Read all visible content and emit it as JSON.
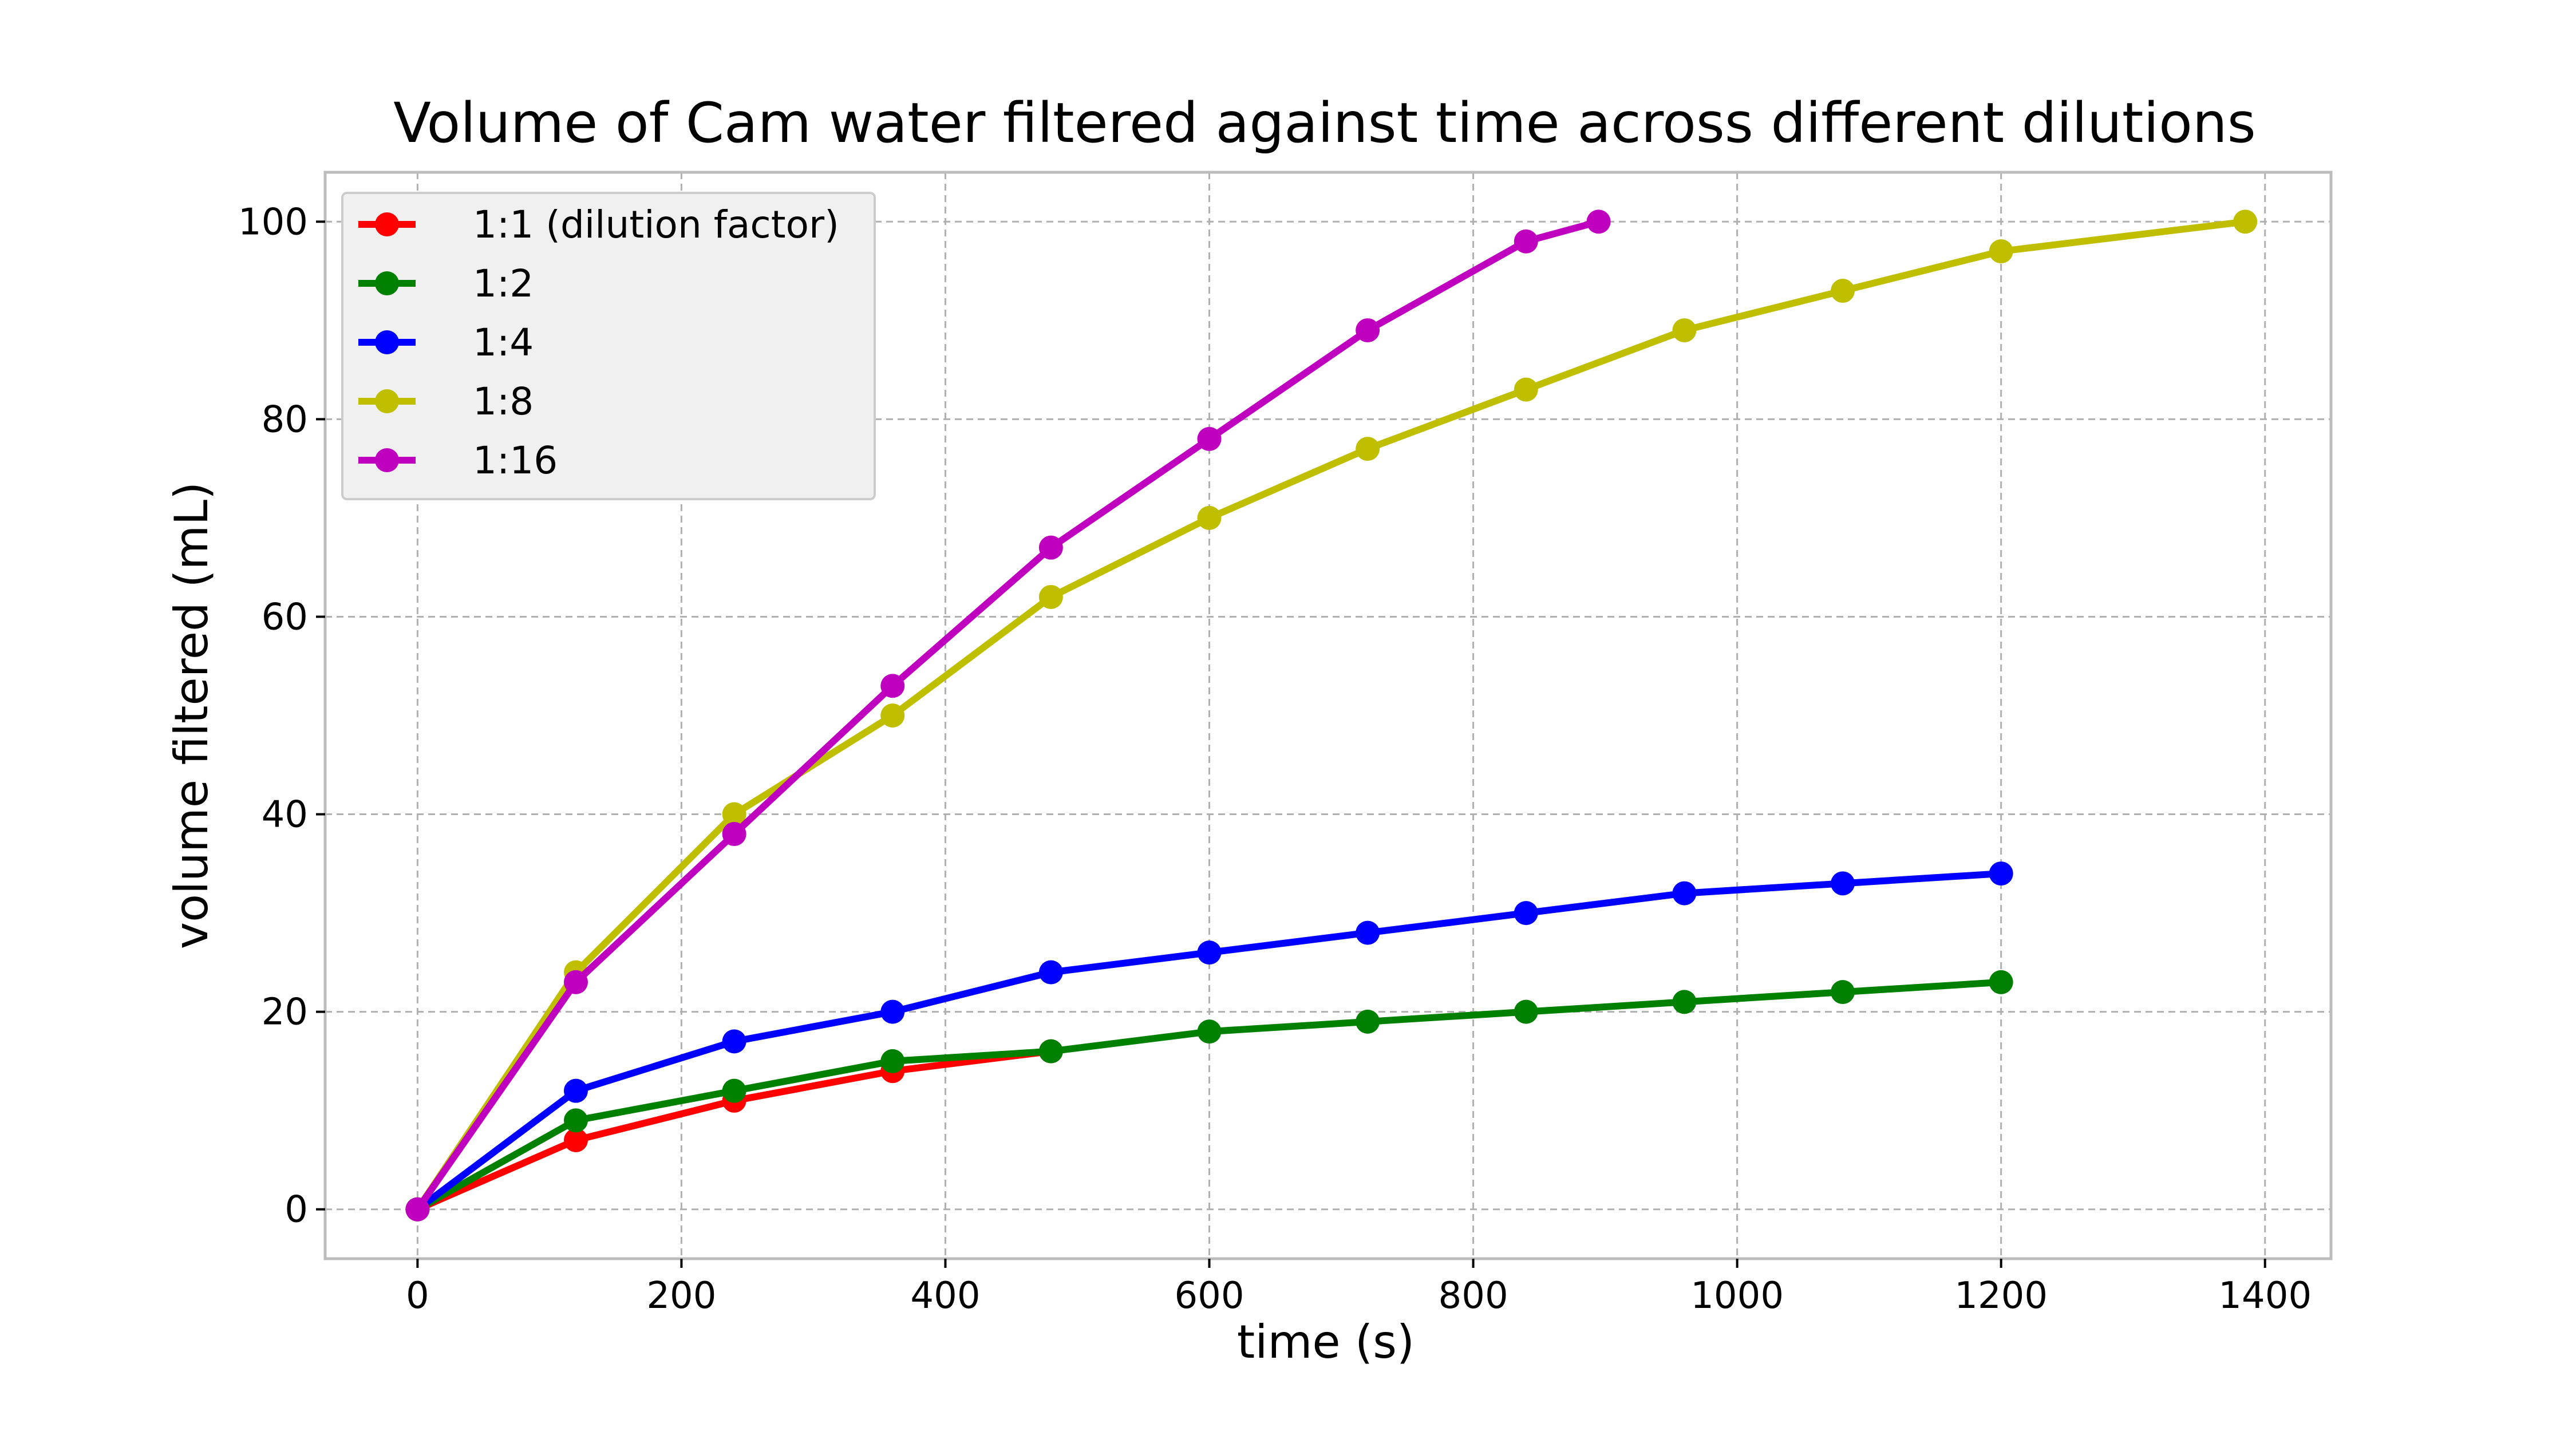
{
  "chart_data": {
    "type": "line",
    "title": "Volume of Cam water filtered against time across different dilutions",
    "xlabel": "time (s)",
    "ylabel": "volume filtered (mL)",
    "xlim": [
      -70,
      1450
    ],
    "ylim": [
      -5,
      105
    ],
    "xticks": [
      0,
      200,
      400,
      600,
      800,
      1000,
      1200,
      1400
    ],
    "yticks": [
      0,
      20,
      40,
      60,
      80,
      100
    ],
    "grid": true,
    "legend_position": "top-left",
    "series": [
      {
        "name": "1:1 (dilution factor)",
        "color": "#ff0000",
        "x": [
          0,
          120,
          240,
          360,
          480
        ],
        "y": [
          0,
          7,
          11,
          14,
          16
        ]
      },
      {
        "name": "1:2",
        "color": "#008000",
        "x": [
          0,
          120,
          240,
          360,
          480,
          600,
          720,
          840,
          960,
          1080,
          1200
        ],
        "y": [
          0,
          9,
          12,
          15,
          16,
          18,
          19,
          20,
          21,
          22,
          23
        ]
      },
      {
        "name": "1:4",
        "color": "#0000ff",
        "x": [
          0,
          120,
          240,
          360,
          480,
          600,
          720,
          840,
          960,
          1080,
          1200
        ],
        "y": [
          0,
          12,
          17,
          20,
          24,
          26,
          28,
          30,
          32,
          33,
          34
        ]
      },
      {
        "name": "1:8",
        "color": "#bfbf00",
        "x": [
          0,
          120,
          240,
          360,
          480,
          600,
          720,
          840,
          960,
          1080,
          1200,
          1385
        ],
        "y": [
          0,
          24,
          40,
          50,
          62,
          70,
          77,
          83,
          89,
          93,
          97,
          100
        ]
      },
      {
        "name": "1:16",
        "color": "#bf00bf",
        "x": [
          0,
          120,
          240,
          360,
          480,
          600,
          720,
          840,
          895
        ],
        "y": [
          0,
          23,
          38,
          53,
          67,
          78,
          89,
          98,
          100
        ]
      }
    ]
  }
}
